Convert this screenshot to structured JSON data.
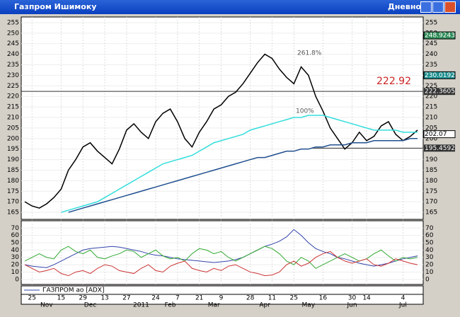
{
  "window": {
    "title": "Газпром Ишимоку",
    "mode": "Дневной"
  },
  "chart_data": {
    "type": "line",
    "ylim": [
      163,
      257
    ],
    "yticks": [
      165,
      170,
      175,
      180,
      185,
      190,
      195,
      200,
      205,
      210,
      215,
      220,
      225,
      230,
      235,
      240,
      245,
      250,
      255
    ],
    "xlim": [
      0,
      54
    ],
    "xticks": [
      {
        "value": 1,
        "label": "25"
      },
      {
        "value": 5,
        "label": "15"
      },
      {
        "value": 8,
        "label": "29"
      },
      {
        "value": 11,
        "label": "13"
      },
      {
        "value": 14,
        "label": "27"
      },
      {
        "value": 18,
        "label": "24"
      },
      {
        "value": 21,
        "label": "7"
      },
      {
        "value": 24,
        "label": "21"
      },
      {
        "value": 27,
        "label": "9"
      },
      {
        "value": 31,
        "label": "28"
      },
      {
        "value": 34,
        "label": "11"
      },
      {
        "value": 37,
        "label": "25"
      },
      {
        "value": 41,
        "label": "16"
      },
      {
        "value": 45,
        "label": "30"
      },
      {
        "value": 47,
        "label": "14"
      },
      {
        "value": 52,
        "label": "4"
      }
    ],
    "months": [
      {
        "value": 3,
        "label": "Nov"
      },
      {
        "value": 9,
        "label": "Dec"
      },
      {
        "value": 16,
        "label": "2011"
      },
      {
        "value": 20,
        "label": "Feb"
      },
      {
        "value": 26,
        "label": "Mar"
      },
      {
        "value": 33,
        "label": "Apr"
      },
      {
        "value": 39,
        "label": "May"
      },
      {
        "value": 45,
        "label": "Jun"
      },
      {
        "value": 52,
        "label": "Jul"
      }
    ],
    "series": [
      {
        "color": "#000000",
        "values": [
          170,
          168,
          167,
          169,
          172,
          176,
          185,
          190,
          196,
          198,
          194,
          191,
          188,
          195,
          204,
          207,
          203,
          200,
          208,
          212,
          214,
          208,
          200,
          196,
          203,
          208,
          214,
          216,
          220,
          222,
          226,
          231,
          236,
          240,
          238,
          233,
          229,
          226,
          234,
          230,
          220,
          213,
          205,
          200,
          195,
          198,
          203,
          199,
          201,
          206,
          208,
          202,
          199,
          201,
          204
        ]
      },
      {
        "color": "#33dddd",
        "values": [
          null,
          null,
          null,
          null,
          null,
          165,
          166,
          167,
          168,
          169,
          170,
          172,
          174,
          176,
          178,
          180,
          182,
          184,
          186,
          188,
          189,
          190,
          191,
          192,
          194,
          196,
          198,
          199,
          200,
          201,
          202,
          204,
          205,
          206,
          207,
          208,
          209,
          210,
          210,
          211,
          211,
          211,
          210,
          209,
          208,
          207,
          206,
          205,
          204,
          204,
          204,
          204,
          203,
          203,
          203
        ]
      },
      {
        "color": "#1f4f8f",
        "values": [
          null,
          null,
          null,
          null,
          null,
          null,
          165,
          166,
          167,
          168,
          169,
          170,
          171,
          172,
          173,
          174,
          175,
          176,
          177,
          178,
          179,
          180,
          181,
          182,
          183,
          184,
          185,
          186,
          187,
          188,
          189,
          190,
          191,
          191,
          192,
          193,
          194,
          194,
          195,
          195,
          196,
          196,
          197,
          197,
          197,
          198,
          198,
          198,
          199,
          199,
          199,
          199,
          199,
          200,
          200
        ]
      }
    ],
    "levels": [
      {
        "value": 222.3605,
        "color": "#333333"
      },
      {
        "value": 195.4592,
        "color": "#333333"
      }
    ],
    "price_markers": [
      {
        "value": 248.9243,
        "color": "#2e8b57"
      },
      {
        "value": 230.0192,
        "color": "#1f8f8f"
      },
      {
        "value": 202.07,
        "color": "#ffffff"
      }
    ],
    "annotations": [
      "261.8%",
      "100%",
      "222.92"
    ],
    "adx": {
      "legend": "ГАЗПРОМ ао [ADX]",
      "ylim": [
        -5,
        78
      ],
      "yticks": [
        0,
        10,
        20,
        30,
        40,
        50,
        60,
        70
      ],
      "series": [
        {
          "color": "#3344aa",
          "values": [
            20,
            18,
            17,
            16,
            20,
            25,
            30,
            35,
            40,
            42,
            43,
            44,
            45,
            44,
            42,
            40,
            38,
            35,
            33,
            32,
            30,
            28,
            27,
            26,
            25,
            24,
            23,
            24,
            25,
            27,
            30,
            35,
            40,
            45,
            48,
            52,
            58,
            68,
            60,
            50,
            42,
            38,
            35,
            30,
            28,
            25,
            22,
            20,
            18,
            20,
            22,
            25,
            28,
            30,
            32
          ]
        },
        {
          "color": "#33aa33",
          "values": [
            25,
            30,
            35,
            30,
            28,
            40,
            45,
            38,
            35,
            40,
            30,
            28,
            32,
            35,
            40,
            38,
            30,
            35,
            40,
            32,
            28,
            30,
            25,
            35,
            42,
            40,
            35,
            38,
            30,
            25,
            30,
            35,
            40,
            45,
            42,
            35,
            25,
            20,
            30,
            25,
            15,
            20,
            25,
            30,
            35,
            30,
            25,
            28,
            35,
            40,
            32,
            25,
            30,
            28,
            30
          ]
        },
        {
          "color": "#cc3333",
          "values": [
            20,
            15,
            10,
            12,
            15,
            8,
            5,
            10,
            12,
            8,
            15,
            20,
            18,
            12,
            10,
            8,
            15,
            20,
            12,
            10,
            18,
            22,
            25,
            15,
            12,
            10,
            15,
            12,
            18,
            20,
            15,
            10,
            8,
            5,
            6,
            10,
            20,
            25,
            18,
            22,
            30,
            35,
            38,
            30,
            25,
            22,
            25,
            28,
            20,
            18,
            22,
            28,
            25,
            22,
            20
          ]
        }
      ]
    }
  }
}
